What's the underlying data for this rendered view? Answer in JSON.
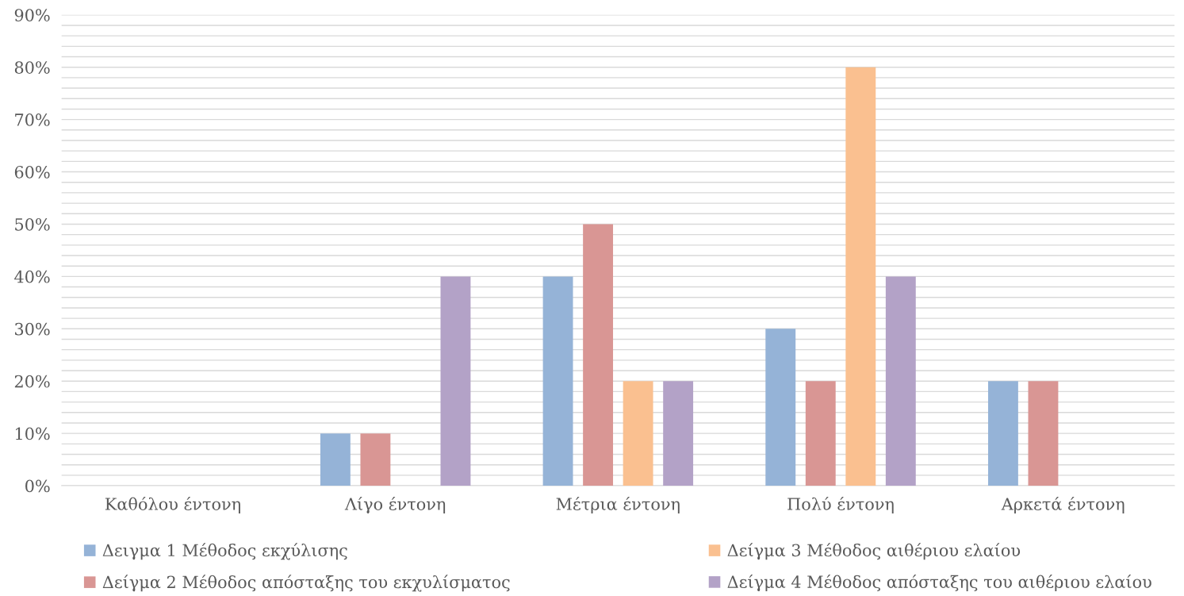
{
  "chart_data": {
    "type": "bar",
    "categories": [
      "Καθόλου έντονη",
      "Λίγο έντονη",
      "Μέτρια έντονη",
      "Πολύ έντονη",
      "Αρκετά έντονη"
    ],
    "series": [
      {
        "name": "Δειγμα 1 Μέθοδος εκχύλισης",
        "color": "#95b3d7",
        "values": [
          0,
          10,
          40,
          30,
          20
        ]
      },
      {
        "name": "Δείγμα 2 Μέθοδος απόσταξης του εκχυλίσματος",
        "color": "#d99694",
        "values": [
          0,
          10,
          50,
          20,
          20
        ]
      },
      {
        "name": "Δείγμα 3 Μέθοδος αιθέριου ελαίου",
        "color": "#fac090",
        "values": [
          0,
          0,
          20,
          80,
          0
        ]
      },
      {
        "name": "Δείγμα 4 Μέθοδος απόσταξης του αιθέριου ελαίου",
        "color": "#b3a2c7",
        "values": [
          0,
          40,
          20,
          40,
          0
        ]
      }
    ],
    "ylim": [
      0,
      90
    ],
    "yticks": [
      {
        "value": 0,
        "label": "0%"
      },
      {
        "value": 2,
        "label": null
      },
      {
        "value": 4,
        "label": null
      },
      {
        "value": 6,
        "label": null
      },
      {
        "value": 8,
        "label": null
      },
      {
        "value": 10,
        "label": "10%"
      },
      {
        "value": 12,
        "label": null
      },
      {
        "value": 14,
        "label": null
      },
      {
        "value": 16,
        "label": null
      },
      {
        "value": 18,
        "label": null
      },
      {
        "value": 20,
        "label": "20%"
      },
      {
        "value": 22,
        "label": null
      },
      {
        "value": 24,
        "label": null
      },
      {
        "value": 26,
        "label": null
      },
      {
        "value": 28,
        "label": null
      },
      {
        "value": 30,
        "label": "30%"
      },
      {
        "value": 32,
        "label": null
      },
      {
        "value": 34,
        "label": null
      },
      {
        "value": 36,
        "label": null
      },
      {
        "value": 38,
        "label": null
      },
      {
        "value": 40,
        "label": "40%"
      },
      {
        "value": 42,
        "label": null
      },
      {
        "value": 44,
        "label": null
      },
      {
        "value": 46,
        "label": null
      },
      {
        "value": 48,
        "label": null
      },
      {
        "value": 50,
        "label": "50%"
      },
      {
        "value": 52,
        "label": null
      },
      {
        "value": 54,
        "label": null
      },
      {
        "value": 56,
        "label": null
      },
      {
        "value": 58,
        "label": null
      },
      {
        "value": 60,
        "label": "60%"
      },
      {
        "value": 62,
        "label": null
      },
      {
        "value": 64,
        "label": null
      },
      {
        "value": 66,
        "label": null
      },
      {
        "value": 68,
        "label": null
      },
      {
        "value": 70,
        "label": "70%"
      },
      {
        "value": 72,
        "label": null
      },
      {
        "value": 74,
        "label": null
      },
      {
        "value": 76,
        "label": null
      },
      {
        "value": 78,
        "label": null
      },
      {
        "value": 80,
        "label": "80%"
      },
      {
        "value": 82,
        "label": null
      },
      {
        "value": 84,
        "label": null
      },
      {
        "value": 86,
        "label": null
      },
      {
        "value": 88,
        "label": null
      },
      {
        "value": 90,
        "label": "90%"
      }
    ],
    "grid": "y",
    "legend": "bottom"
  }
}
